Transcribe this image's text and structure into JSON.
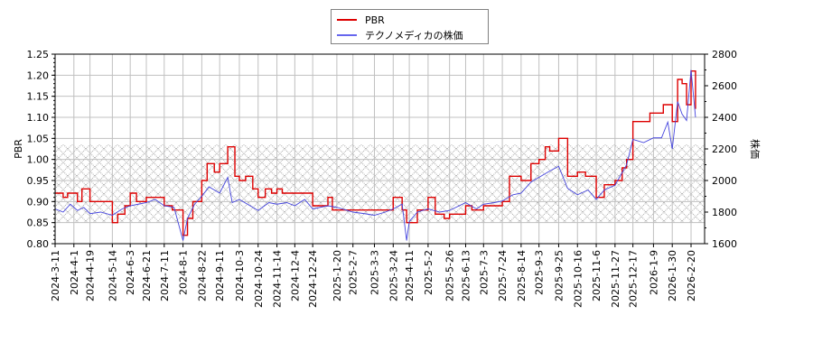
{
  "chart_data": {
    "type": "line",
    "title": "",
    "legend": {
      "position": "top-center",
      "entries": [
        {
          "label": "PBR",
          "color": "#dd0000"
        },
        {
          "label": "テクノメディカの株価",
          "color": "#4444dd"
        }
      ]
    },
    "xlabel": "",
    "ylabel_left": "PBR",
    "ylabel_right": "株価",
    "ylim_left": [
      0.8,
      1.25
    ],
    "ylim_right": [
      1600,
      2800
    ],
    "yticks_left": [
      "0.80",
      "0.85",
      "0.90",
      "0.95",
      "1.00",
      "1.05",
      "1.10",
      "1.15",
      "1.20",
      "1.25"
    ],
    "yticks_right": [
      "1600",
      "1800",
      "2000",
      "2200",
      "2400",
      "2600",
      "2800"
    ],
    "xticks": [
      "2024-3-11",
      "2024-4-1",
      "2024-4-19",
      "2024-5-14",
      "2024-6-3",
      "2024-6-21",
      "2024-7-11",
      "2024-8-1",
      "2024-8-22",
      "2024-9-11",
      "2024-10-3",
      "2024-10-24",
      "2024-11-14",
      "2024-12-4",
      "2024-12-24",
      "2025-1-20",
      "2025-2-7",
      "2025-3-3",
      "2025-3-24",
      "2025-4-11",
      "2025-5-2",
      "2025-5-26",
      "2025-6-13",
      "2025-7-3",
      "2025-7-24",
      "2025-8-14",
      "2025-9-3",
      "2025-9-25",
      "2025-10-16",
      "2025-11-6",
      "2025-11-27",
      "2025-12-17",
      "2026-1-9",
      "2026-1-30",
      "2026-2-20"
    ],
    "grid": true,
    "shaded_band_pbr": [
      0.85,
      1.035
    ],
    "series": [
      {
        "name": "PBR",
        "axis": "left",
        "color": "#dd0000",
        "x": [
          "2024-3-11",
          "2024-3-20",
          "2024-3-25",
          "2024-4-5",
          "2024-4-10",
          "2024-4-19",
          "2024-5-14",
          "2024-5-20",
          "2024-5-28",
          "2024-6-3",
          "2024-6-10",
          "2024-6-21",
          "2024-7-11",
          "2024-7-20",
          "2024-8-1",
          "2024-8-6",
          "2024-8-12",
          "2024-8-22",
          "2024-8-28",
          "2024-9-5",
          "2024-9-11",
          "2024-9-20",
          "2024-9-28",
          "2024-10-3",
          "2024-10-10",
          "2024-10-18",
          "2024-10-24",
          "2024-11-1",
          "2024-11-8",
          "2024-11-14",
          "2024-11-20",
          "2024-12-4",
          "2024-12-24",
          "2025-1-10",
          "2025-1-15",
          "2025-1-20",
          "2025-2-7",
          "2025-3-3",
          "2025-3-24",
          "2025-4-3",
          "2025-4-8",
          "2025-4-11",
          "2025-4-20",
          "2025-5-2",
          "2025-5-10",
          "2025-5-20",
          "2025-5-26",
          "2025-6-13",
          "2025-6-20",
          "2025-7-3",
          "2025-7-24",
          "2025-8-1",
          "2025-8-14",
          "2025-8-25",
          "2025-9-3",
          "2025-9-10",
          "2025-9-15",
          "2025-9-25",
          "2025-10-5",
          "2025-10-16",
          "2025-10-25",
          "2025-11-6",
          "2025-11-15",
          "2025-11-27",
          "2025-12-5",
          "2025-12-10",
          "2025-12-17",
          "2026-1-5",
          "2026-1-9",
          "2026-1-15",
          "2026-1-20",
          "2026-1-30",
          "2026-2-5",
          "2026-2-10",
          "2026-2-15",
          "2026-2-20",
          "2026-2-25"
        ],
        "values": [
          0.92,
          0.91,
          0.92,
          0.9,
          0.93,
          0.9,
          0.85,
          0.87,
          0.89,
          0.92,
          0.9,
          0.91,
          0.89,
          0.88,
          0.82,
          0.86,
          0.9,
          0.95,
          0.99,
          0.97,
          0.99,
          1.03,
          0.96,
          0.95,
          0.96,
          0.93,
          0.91,
          0.93,
          0.92,
          0.93,
          0.92,
          0.92,
          0.89,
          0.91,
          0.88,
          0.88,
          0.88,
          0.88,
          0.91,
          0.88,
          0.85,
          0.85,
          0.88,
          0.91,
          0.87,
          0.86,
          0.87,
          0.89,
          0.88,
          0.89,
          0.9,
          0.96,
          0.95,
          0.99,
          1.0,
          1.03,
          1.02,
          1.05,
          0.96,
          0.97,
          0.96,
          0.91,
          0.94,
          0.95,
          0.98,
          1.0,
          1.09,
          1.11,
          1.11,
          1.11,
          1.13,
          1.09,
          1.19,
          1.18,
          1.13,
          1.21,
          1.12
        ]
      },
      {
        "name": "テクノメディカの株価",
        "axis": "right",
        "color": "#4444dd",
        "x": [
          "2024-3-11",
          "2024-3-20",
          "2024-3-28",
          "2024-4-5",
          "2024-4-12",
          "2024-4-19",
          "2024-5-1",
          "2024-5-14",
          "2024-5-25",
          "2024-6-3",
          "2024-6-12",
          "2024-6-21",
          "2024-7-1",
          "2024-7-11",
          "2024-7-22",
          "2024-8-1",
          "2024-8-6",
          "2024-8-14",
          "2024-8-22",
          "2024-8-30",
          "2024-9-11",
          "2024-9-20",
          "2024-9-25",
          "2024-10-3",
          "2024-10-15",
          "2024-10-24",
          "2024-11-5",
          "2024-11-14",
          "2024-11-25",
          "2024-12-4",
          "2024-12-15",
          "2024-12-24",
          "2025-1-10",
          "2025-1-20",
          "2025-2-7",
          "2025-2-20",
          "2025-3-3",
          "2025-3-15",
          "2025-3-24",
          "2025-4-3",
          "2025-4-8",
          "2025-4-11",
          "2025-4-20",
          "2025-5-2",
          "2025-5-15",
          "2025-5-26",
          "2025-6-13",
          "2025-6-25",
          "2025-7-3",
          "2025-7-15",
          "2025-7-24",
          "2025-8-5",
          "2025-8-14",
          "2025-8-25",
          "2025-9-3",
          "2025-9-15",
          "2025-9-25",
          "2025-10-5",
          "2025-10-16",
          "2025-10-28",
          "2025-11-6",
          "2025-11-15",
          "2025-11-27",
          "2025-12-10",
          "2025-12-17",
          "2025-12-29",
          "2026-1-9",
          "2026-1-18",
          "2026-1-25",
          "2026-1-30",
          "2026-2-5",
          "2026-2-10",
          "2026-2-15",
          "2026-2-20",
          "2026-2-25"
        ],
        "values": [
          1820,
          1800,
          1850,
          1810,
          1830,
          1790,
          1800,
          1780,
          1820,
          1840,
          1850,
          1860,
          1880,
          1840,
          1830,
          1620,
          1760,
          1850,
          1900,
          1960,
          1920,
          2020,
          1860,
          1880,
          1840,
          1810,
          1860,
          1850,
          1860,
          1840,
          1880,
          1820,
          1840,
          1830,
          1800,
          1790,
          1780,
          1800,
          1820,
          1850,
          1620,
          1740,
          1800,
          1820,
          1800,
          1810,
          1860,
          1820,
          1850,
          1860,
          1870,
          1910,
          1920,
          1990,
          2020,
          2060,
          2090,
          1950,
          1910,
          1940,
          1880,
          1940,
          1970,
          2100,
          2260,
          2240,
          2270,
          2270,
          2370,
          2200,
          2500,
          2420,
          2380,
          2700,
          2400
        ]
      }
    ]
  }
}
